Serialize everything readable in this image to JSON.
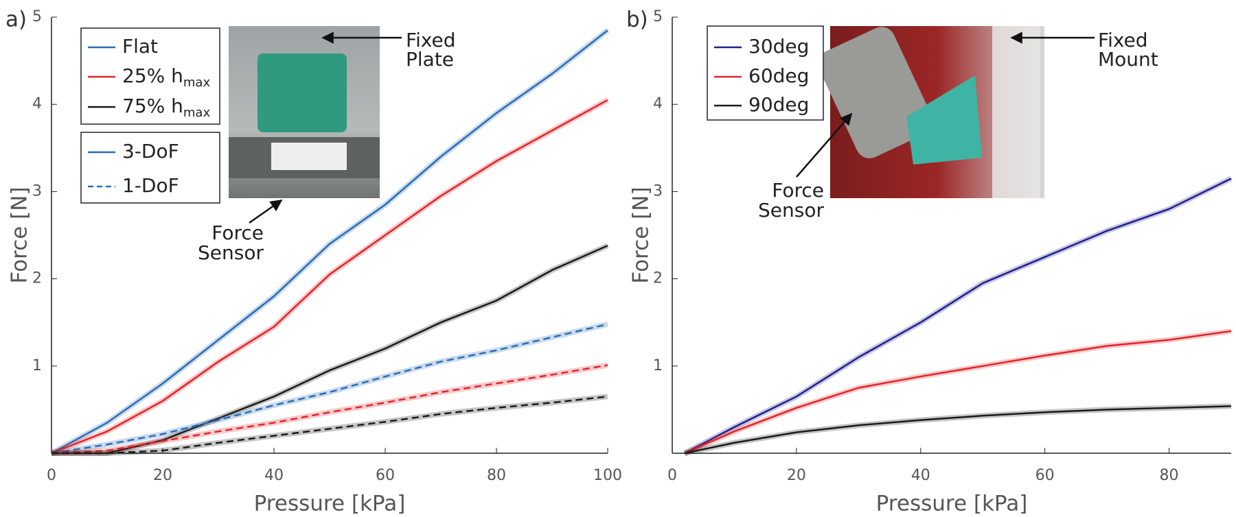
{
  "chart_data": [
    {
      "type": "line",
      "panel_label": "a)",
      "xlabel": "Pressure [kPa]",
      "ylabel": "Force [N]",
      "xlim": [
        0,
        100
      ],
      "ylim": [
        0,
        5
      ],
      "xticks": [
        0,
        20,
        40,
        60,
        80,
        100
      ],
      "yticks": [
        1,
        2,
        3,
        4,
        5
      ],
      "x": [
        0,
        10,
        20,
        30,
        40,
        50,
        60,
        70,
        80,
        90,
        100
      ],
      "legend": [
        {
          "name": "Flat",
          "color": "#2a6db4"
        },
        {
          "name": "25% h",
          "name_sub": "max",
          "color": "#e0262b"
        },
        {
          "name": "75% h",
          "name_sub": "max",
          "color": "#1a1a1a"
        }
      ],
      "style_legend": [
        {
          "name": "3-DoF",
          "color": "#2a6db4",
          "dashed": false
        },
        {
          "name": "1-DoF",
          "color": "#2a6db4",
          "dashed": true
        }
      ],
      "series": [
        {
          "color": "#2a6db4",
          "dashed": false,
          "values": [
            0,
            0.35,
            0.8,
            1.3,
            1.8,
            2.4,
            2.85,
            3.4,
            3.9,
            4.35,
            4.85
          ]
        },
        {
          "color": "#e0262b",
          "dashed": false,
          "values": [
            0,
            0.25,
            0.6,
            1.05,
            1.45,
            2.05,
            2.5,
            2.95,
            3.35,
            3.7,
            4.05
          ]
        },
        {
          "color": "#1a1a1a",
          "dashed": false,
          "values": [
            0,
            0,
            0.15,
            0.4,
            0.65,
            0.95,
            1.2,
            1.5,
            1.75,
            2.1,
            2.38
          ]
        },
        {
          "color": "#2a6db4",
          "dashed": true,
          "values": [
            0,
            0.1,
            0.22,
            0.38,
            0.55,
            0.7,
            0.88,
            1.05,
            1.18,
            1.33,
            1.48
          ]
        },
        {
          "color": "#e0262b",
          "dashed": true,
          "values": [
            0,
            0.03,
            0.14,
            0.25,
            0.35,
            0.47,
            0.58,
            0.7,
            0.8,
            0.9,
            1.01
          ]
        },
        {
          "color": "#1a1a1a",
          "dashed": true,
          "values": [
            0,
            0,
            0.03,
            0.12,
            0.2,
            0.28,
            0.36,
            0.45,
            0.52,
            0.58,
            0.65
          ]
        }
      ],
      "annotations": [
        {
          "lines": [
            "Fixed",
            "Plate"
          ]
        },
        {
          "lines": [
            "Force",
            "Sensor"
          ]
        }
      ]
    },
    {
      "type": "line",
      "panel_label": "b)",
      "xlabel": "Pressure [kPa]",
      "ylabel": "Force [N]",
      "xlim": [
        0,
        90
      ],
      "ylim": [
        0,
        5
      ],
      "xticks": [
        0,
        20,
        40,
        60,
        80
      ],
      "yticks": [
        1,
        2,
        3,
        4,
        5
      ],
      "x": [
        2,
        10,
        20,
        30,
        40,
        50,
        60,
        70,
        80,
        90
      ],
      "legend": [
        {
          "name": "30deg",
          "color": "#1f1f8c"
        },
        {
          "name": "60deg",
          "color": "#e0262b"
        },
        {
          "name": "90deg",
          "color": "#1a1a1a"
        }
      ],
      "series": [
        {
          "color": "#1f1f8c",
          "dashed": false,
          "values": [
            0,
            0.3,
            0.65,
            1.1,
            1.5,
            1.95,
            2.25,
            2.55,
            2.8,
            3.15
          ]
        },
        {
          "color": "#e0262b",
          "dashed": false,
          "values": [
            0,
            0.25,
            0.52,
            0.75,
            0.88,
            1.0,
            1.12,
            1.23,
            1.3,
            1.4
          ]
        },
        {
          "color": "#1a1a1a",
          "dashed": false,
          "values": [
            0,
            0.12,
            0.24,
            0.32,
            0.38,
            0.43,
            0.47,
            0.5,
            0.52,
            0.54
          ]
        }
      ],
      "annotations": [
        {
          "lines": [
            "Fixed",
            "Mount"
          ]
        },
        {
          "lines": [
            "Force",
            "Sensor"
          ]
        }
      ]
    }
  ]
}
